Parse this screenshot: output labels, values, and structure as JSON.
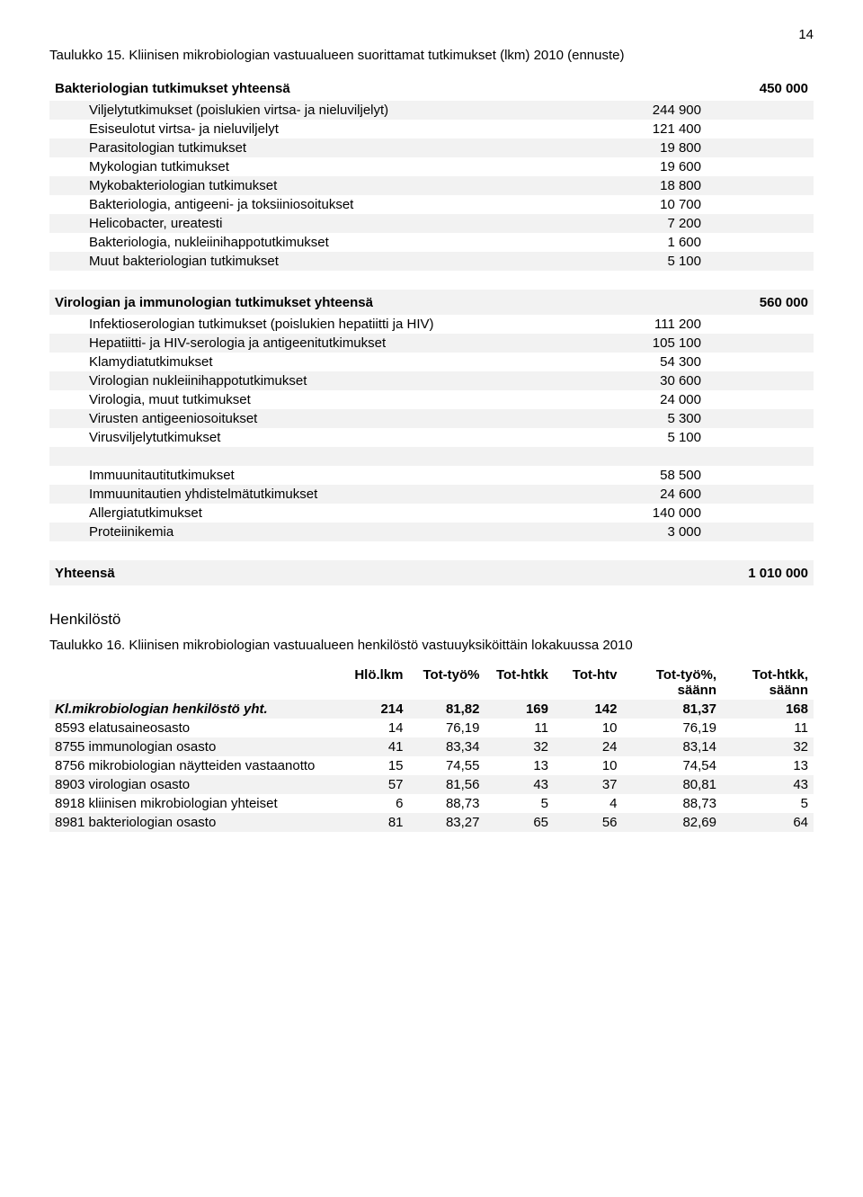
{
  "page_number": "14",
  "table15": {
    "caption": "Taulukko 15. Kliinisen mikrobiologian vastuualueen suorittamat tutkimukset (lkm) 2010 (ennuste)",
    "sections": [
      {
        "title": "Bakteriologian tutkimukset yhteensä",
        "total": "450 000",
        "rows": [
          {
            "label": "Viljelytutkimukset (poislukien virtsa- ja nieluviljelyt)",
            "value": "244 900"
          },
          {
            "label": "Esiseulotut virtsa- ja nieluviljelyt",
            "value": "121 400"
          },
          {
            "label": "Parasitologian tutkimukset",
            "value": "19 800"
          },
          {
            "label": "Mykologian tutkimukset",
            "value": "19 600"
          },
          {
            "label": "Mykobakteriologian tutkimukset",
            "value": "18 800"
          },
          {
            "label": "Bakteriologia, antigeeni- ja toksiiniosoitukset",
            "value": "10 700"
          },
          {
            "label": "Helicobacter, ureatesti",
            "value": "7 200"
          },
          {
            "label": "Bakteriologia, nukleiinihappotutkimukset",
            "value": "1 600"
          },
          {
            "label": "Muut bakteriologian tutkimukset",
            "value": "5 100"
          }
        ]
      },
      {
        "title": "Virologian ja immunologian tutkimukset yhteensä",
        "total": "560 000",
        "rows": [
          {
            "label": "Infektioserologian tutkimukset (poislukien hepatiitti ja HIV)",
            "value": "111 200"
          },
          {
            "label": "Hepatiitti- ja HIV-serologia ja antigeenitutkimukset",
            "value": "105 100"
          },
          {
            "label": "Klamydiatutkimukset",
            "value": "54 300"
          },
          {
            "label": "Virologian nukleiinihappotutkimukset",
            "value": "30 600"
          },
          {
            "label": "Virologia, muut tutkimukset",
            "value": "24 000"
          },
          {
            "label": "Virusten antigeeniosoitukset",
            "value": "5 300"
          },
          {
            "label": "Virusviljelytutkimukset",
            "value": "5 100"
          }
        ]
      },
      {
        "title": "",
        "total": "",
        "rows": [
          {
            "label": "Immuunitautitutkimukset",
            "value": "58 500"
          },
          {
            "label": "Immuunitautien yhdistelmätutkimukset",
            "value": "24 600"
          },
          {
            "label": "Allergiatutkimukset",
            "value": "140 000"
          },
          {
            "label": "Proteiinikemia",
            "value": "3 000"
          }
        ]
      }
    ],
    "grand_label": "Yhteensä",
    "grand_total": "1 010 000"
  },
  "staff_heading": "Henkilöstö",
  "table16": {
    "caption": "Taulukko 16. Kliinisen mikrobiologian vastuualueen henkilöstö vastuuyksiköittäin lokakuussa 2010",
    "columns": [
      "",
      "Hlö.lkm",
      "Tot-työ%",
      "Tot-htkk",
      "Tot-htv",
      "Tot-työ%, säänn",
      "Tot-htkk, säänn"
    ],
    "total_row": {
      "label": "Kl.mikrobiologian henkilöstö yht.",
      "cells": [
        "214",
        "81,82",
        "169",
        "142",
        "81,37",
        "168"
      ]
    },
    "rows": [
      {
        "label": "8593 elatusaineosasto",
        "cells": [
          "14",
          "76,19",
          "11",
          "10",
          "76,19",
          "11"
        ]
      },
      {
        "label": "8755 immunologian osasto",
        "cells": [
          "41",
          "83,34",
          "32",
          "24",
          "83,14",
          "32"
        ]
      },
      {
        "label": "8756 mikrobiologian näytteiden vastaanotto",
        "cells": [
          "15",
          "74,55",
          "13",
          "10",
          "74,54",
          "13"
        ]
      },
      {
        "label": "8903 virologian osasto",
        "cells": [
          "57",
          "81,56",
          "43",
          "37",
          "80,81",
          "43"
        ]
      },
      {
        "label": "8918 kliinisen mikrobiologian yhteiset",
        "cells": [
          "6",
          "88,73",
          "5",
          "4",
          "88,73",
          "5"
        ]
      },
      {
        "label": "8981 bakteriologian osasto",
        "cells": [
          "81",
          "83,27",
          "65",
          "56",
          "82,69",
          "64"
        ]
      }
    ]
  }
}
